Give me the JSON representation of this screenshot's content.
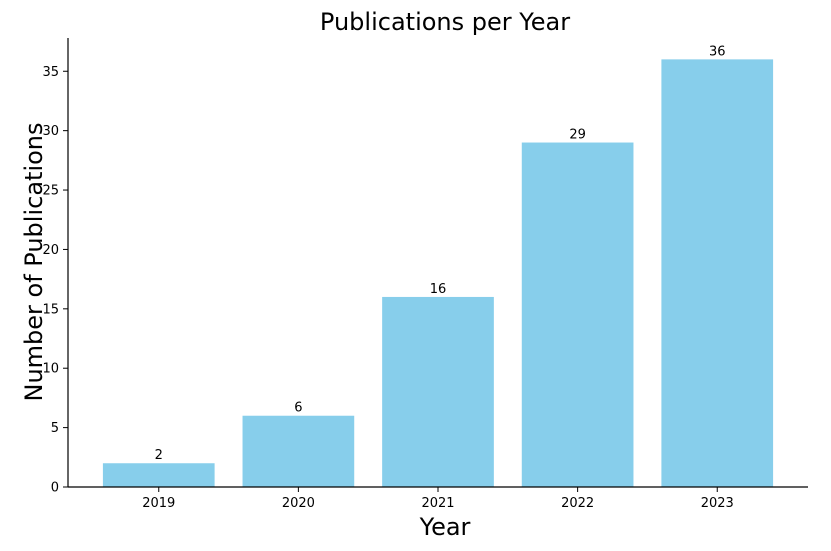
{
  "chart_data": {
    "type": "bar",
    "title": "Publications per Year",
    "xlabel": "Year",
    "ylabel": "Number of Publications",
    "categories": [
      "2019",
      "2020",
      "2021",
      "2022",
      "2023"
    ],
    "values": [
      2,
      6,
      16,
      29,
      36
    ],
    "data_labels": [
      "2",
      "6",
      "16",
      "29",
      "36"
    ],
    "ylim": [
      0,
      37.8
    ],
    "yticks": [
      0,
      5,
      10,
      15,
      20,
      25,
      30,
      35
    ],
    "bar_color": "#87CEEB",
    "grid": false,
    "legend": false,
    "spines": [
      "left",
      "bottom"
    ]
  }
}
